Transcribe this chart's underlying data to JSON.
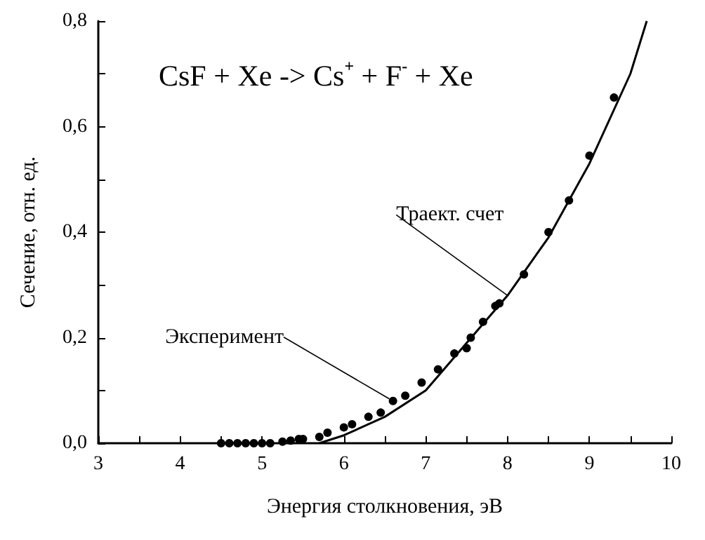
{
  "chart_data": {
    "type": "scatter",
    "title": "CsF + Xe -> Cs$^{+}$ + F$^{-}$ + Xe",
    "xlabel": "Энергия столкновения, эВ",
    "ylabel": "Сечение, отн. ед.",
    "xlim": [
      3,
      10
    ],
    "xticks": [
      3,
      {
        "value": 3.5,
        "label": null
      },
      4,
      {
        "value": 4.5,
        "label": null
      },
      5,
      {
        "value": 5.5,
        "label": null
      },
      6,
      {
        "value": 6.5,
        "label": null
      },
      7,
      {
        "value": 7.5,
        "label": null
      },
      8,
      {
        "value": 8.5,
        "label": null
      },
      9,
      {
        "value": 9.5,
        "label": null
      },
      10
    ],
    "ylim": [
      0,
      0.8
    ],
    "yticks": [
      {
        "value": 0,
        "label": "0,0"
      },
      {
        "value": 0.1,
        "label": null
      },
      {
        "value": 0.2,
        "label": "0,2"
      },
      {
        "value": 0.3,
        "label": null
      },
      {
        "value": 0.4,
        "label": "0,4"
      },
      {
        "value": 0.5,
        "label": null
      },
      {
        "value": 0.6,
        "label": "0,6"
      },
      {
        "value": 0.7,
        "label": null
      },
      {
        "value": 0.8,
        "label": "0,8"
      }
    ],
    "grid": false,
    "legend": false,
    "series": [
      {
        "name": "Эксперимент",
        "marker": "circle",
        "color": "#000000",
        "x": [
          4.5,
          4.6,
          4.7,
          4.8,
          4.9,
          5.0,
          5.1,
          5.25,
          5.35,
          5.45,
          5.5,
          5.7,
          5.8,
          6.0,
          6.1,
          6.3,
          6.45,
          6.6,
          6.75,
          6.95,
          7.15,
          7.35,
          7.5,
          7.55,
          7.7,
          7.85,
          7.9,
          8.2,
          8.5,
          8.75,
          9.0,
          9.3
        ],
        "values": [
          0,
          0,
          0,
          0,
          0,
          0,
          0,
          0.003,
          0.005,
          0.008,
          0.008,
          0.012,
          0.02,
          0.03,
          0.036,
          0.05,
          0.058,
          0.08,
          0.09,
          0.115,
          0.14,
          0.17,
          0.18,
          0.2,
          0.23,
          0.26,
          0.265,
          0.32,
          0.4,
          0.46,
          0.545,
          0.655
        ]
      },
      {
        "name": "Траект. счет",
        "type": "line",
        "marker": "none",
        "line_style": "solid",
        "color": "#000000",
        "x": [
          5.7,
          6.0,
          6.5,
          7.0,
          7.5,
          8.0,
          8.5,
          9.0,
          9.5,
          9.7
        ],
        "values": [
          0,
          0.015,
          0.05,
          0.1,
          0.19,
          0.28,
          0.39,
          0.53,
          0.7,
          0.8
        ]
      }
    ]
  }
}
